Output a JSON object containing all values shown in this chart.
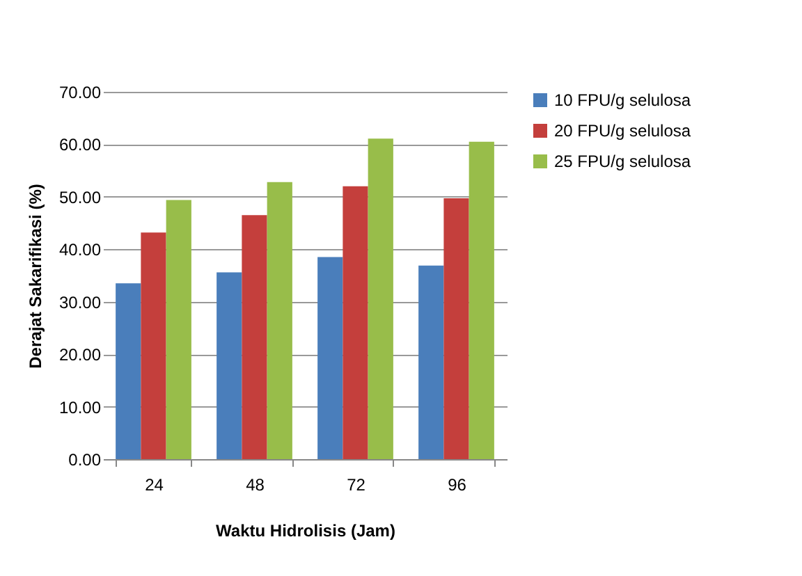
{
  "chart_data": {
    "type": "bar",
    "xlabel": "Waktu Hidrolisis (Jam)",
    "ylabel": "Derajat Sakarifikasi (%)",
    "categories": [
      "24",
      "48",
      "72",
      "96"
    ],
    "series": [
      {
        "name": "10 FPU/g selulosa",
        "color": "#4a7ebb",
        "values": [
          33.5,
          35.6,
          38.5,
          36.9
        ]
      },
      {
        "name": "20 FPU/g selulosa",
        "color": "#c43f3c",
        "values": [
          43.2,
          46.5,
          52.0,
          49.7
        ]
      },
      {
        "name": "25 FPU/g selulosa",
        "color": "#98bd4a",
        "values": [
          49.4,
          52.8,
          61.1,
          60.5
        ]
      }
    ],
    "ylim": [
      0,
      70
    ],
    "yticks": [
      {
        "value": 0,
        "label": "0.00"
      },
      {
        "value": 10,
        "label": "10.00"
      },
      {
        "value": 20,
        "label": "20.00"
      },
      {
        "value": 30,
        "label": "30.00"
      },
      {
        "value": 40,
        "label": "40.00"
      },
      {
        "value": 50,
        "label": "50.00"
      },
      {
        "value": 60,
        "label": "60.00"
      },
      {
        "value": 70,
        "label": "70.00"
      }
    ],
    "grid": "y",
    "legend": "right"
  }
}
